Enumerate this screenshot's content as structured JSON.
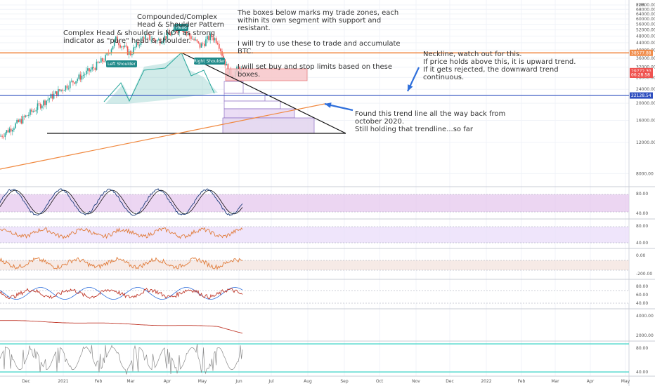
{
  "colors": {
    "up": "#26a69a",
    "down": "#ef5350",
    "neckline": "#f08c4a",
    "support": "#2f4fbf",
    "trend": "#f0883e",
    "arrow": "#2f6fdb",
    "pill": "#1f8a8a",
    "rsi_band": "#e6c8ee",
    "osc_band": "#f3e3dd",
    "stoch": "#8a8a8a"
  },
  "annotations": {
    "pattern_title": "Compounded/Complex\nHead & Shoulder Pattern",
    "complex_note": "Complex Head & shoulder is NOT as strong\nindicator as \"pure\" head & shoulder.",
    "boxes_note": "The boxes below marks my trade zones, each\nwithin its own segment with support and\nresistant.\n\nI will try to use these to trade and accumulate\nBTC.\n\nI will set buy and stop limits based on these\nboxes.",
    "neckline_note": "Neckline, watch out for this.\nIf price holds above this, it is upward trend.\nIf it gets rejected, the downward trend\ncontinuous.",
    "trendline_note": "Found this trend line all the way back from\noctober 2020.\nStill holding that trendline...so far",
    "left_shoulder": "Left Shoulder",
    "head": "Head",
    "right_shoulder": "Right Shoulder"
  },
  "price_axis": {
    "currency": "EUR",
    "ticks": [
      "72000.00",
      "68000.00",
      "64000.00",
      "60000.00",
      "56000.00",
      "52000.00",
      "48000.00",
      "44000.00",
      "40000.00",
      "36000.00",
      "32000.00",
      "28000.00",
      "24000.00",
      "20000.00",
      "16000.00",
      "12000.00",
      "8000.00"
    ],
    "tags": [
      {
        "label": "38577.88",
        "color": "#f08c4a"
      },
      {
        "label": "29772.30",
        "color": "#ef5350"
      },
      {
        "label": "06:28:58",
        "color": "#ef5350"
      },
      {
        "label": "22128.54",
        "color": "#2f4fbf"
      }
    ]
  },
  "time_axis": [
    "Dec",
    "2021",
    "Feb",
    "Mar",
    "Apr",
    "May",
    "Jun",
    "Jul",
    "Aug",
    "Sep",
    "Oct",
    "Nov",
    "Dec",
    "2022",
    "Feb",
    "Mar",
    "Apr",
    "May"
  ],
  "pane_axes": [
    [
      "80.00",
      "40.00"
    ],
    [
      "80.00",
      "40.00"
    ],
    [
      "0.00",
      "-200.00"
    ],
    [
      "80.00",
      "60.00",
      "40.00"
    ],
    [
      "4000.00",
      "2000.00"
    ],
    [
      "80.00",
      "40.00"
    ]
  ],
  "chart_data": {
    "type": "line",
    "title": "",
    "ylabel": "EUR",
    "y_scale": "log",
    "ylim": [
      7000,
      74000
    ],
    "x": [
      "Nov",
      "Dec",
      "2021",
      "Jan",
      "Feb",
      "Mar",
      "Apr",
      "Apr",
      "May",
      "May",
      "May",
      "Jun"
    ],
    "series": [
      {
        "values": [
          13000,
          16000,
          20000,
          27000,
          33000,
          45000,
          47000,
          54000,
          47000,
          36000,
          31000,
          29772
        ]
      }
    ],
    "levels": [
      38577.88,
      22128.54
    ]
  }
}
